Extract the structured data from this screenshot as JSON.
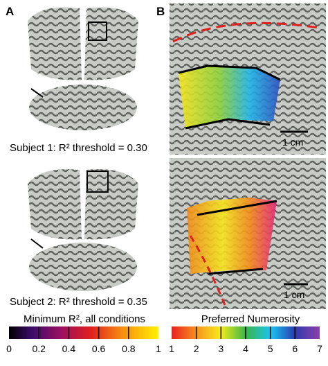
{
  "panels": {
    "a_label": "A",
    "b_label": "B"
  },
  "subjects": [
    {
      "caption": "Subject 1: R² threshold = 0.30",
      "scale_bar": "1 cm"
    },
    {
      "caption": "Subject 2: R² threshold = 0.35",
      "scale_bar": "1 cm"
    }
  ],
  "colorbars": [
    {
      "title": "Minimum R², all conditions",
      "tick_labels": [
        "0",
        "0.2",
        "0.4",
        "0.6",
        "0.8",
        "1"
      ]
    },
    {
      "title": "Preferred Numerosity",
      "tick_labels": [
        "1",
        "2",
        "3",
        "4",
        "5",
        "6",
        "7"
      ]
    }
  ]
}
